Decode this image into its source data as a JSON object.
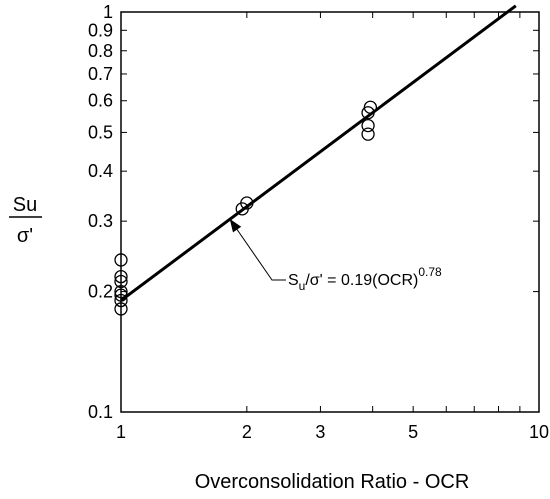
{
  "chart_data": {
    "type": "scatter",
    "x_scale": "log",
    "y_scale": "log",
    "xlim": [
      1,
      10
    ],
    "ylim": [
      0.1,
      1
    ],
    "grid": false,
    "xlabel": "Overconsolidation Ratio - OCR",
    "ylabel_top": "Su",
    "ylabel_bottom": "σ'",
    "x_tick_labels": [
      {
        "value": 1,
        "label": "1"
      },
      {
        "value": 2,
        "label": "2"
      },
      {
        "value": 3,
        "label": "3"
      },
      {
        "value": 5,
        "label": "5"
      },
      {
        "value": 10,
        "label": "10"
      }
    ],
    "y_tick_labels": [
      {
        "value": 0.1,
        "label": "0.1"
      },
      {
        "value": 0.2,
        "label": "0.2"
      },
      {
        "value": 0.3,
        "label": "0.3"
      },
      {
        "value": 0.4,
        "label": "0.4"
      },
      {
        "value": 0.5,
        "label": "0.5"
      },
      {
        "value": 0.6,
        "label": "0.6"
      },
      {
        "value": 0.7,
        "label": "0.7"
      },
      {
        "value": 0.8,
        "label": "0.8"
      },
      {
        "value": 0.9,
        "label": "0.9"
      },
      {
        "value": 1,
        "label": "1"
      }
    ],
    "points": [
      {
        "x": 1,
        "y": 0.24
      },
      {
        "x": 1,
        "y": 0.218
      },
      {
        "x": 1,
        "y": 0.212
      },
      {
        "x": 1,
        "y": 0.2
      },
      {
        "x": 1,
        "y": 0.196
      },
      {
        "x": 1,
        "y": 0.19
      },
      {
        "x": 1,
        "y": 0.181
      },
      {
        "x": 1.95,
        "y": 0.322
      },
      {
        "x": 2.0,
        "y": 0.333
      },
      {
        "x": 3.95,
        "y": 0.578
      },
      {
        "x": 3.9,
        "y": 0.56
      },
      {
        "x": 3.9,
        "y": 0.52
      },
      {
        "x": 3.9,
        "y": 0.495
      }
    ],
    "fit_line": {
      "coefficient": 0.19,
      "exponent": 0.78,
      "x_range": [
        1,
        8.8
      ]
    },
    "annotation": {
      "prefix": "S",
      "subscript": "u",
      "middle": "/σ' = 0.19(OCR)",
      "superscript": "0.78",
      "arrow_to": {
        "x": 1.82,
        "y": 0.304
      }
    }
  }
}
